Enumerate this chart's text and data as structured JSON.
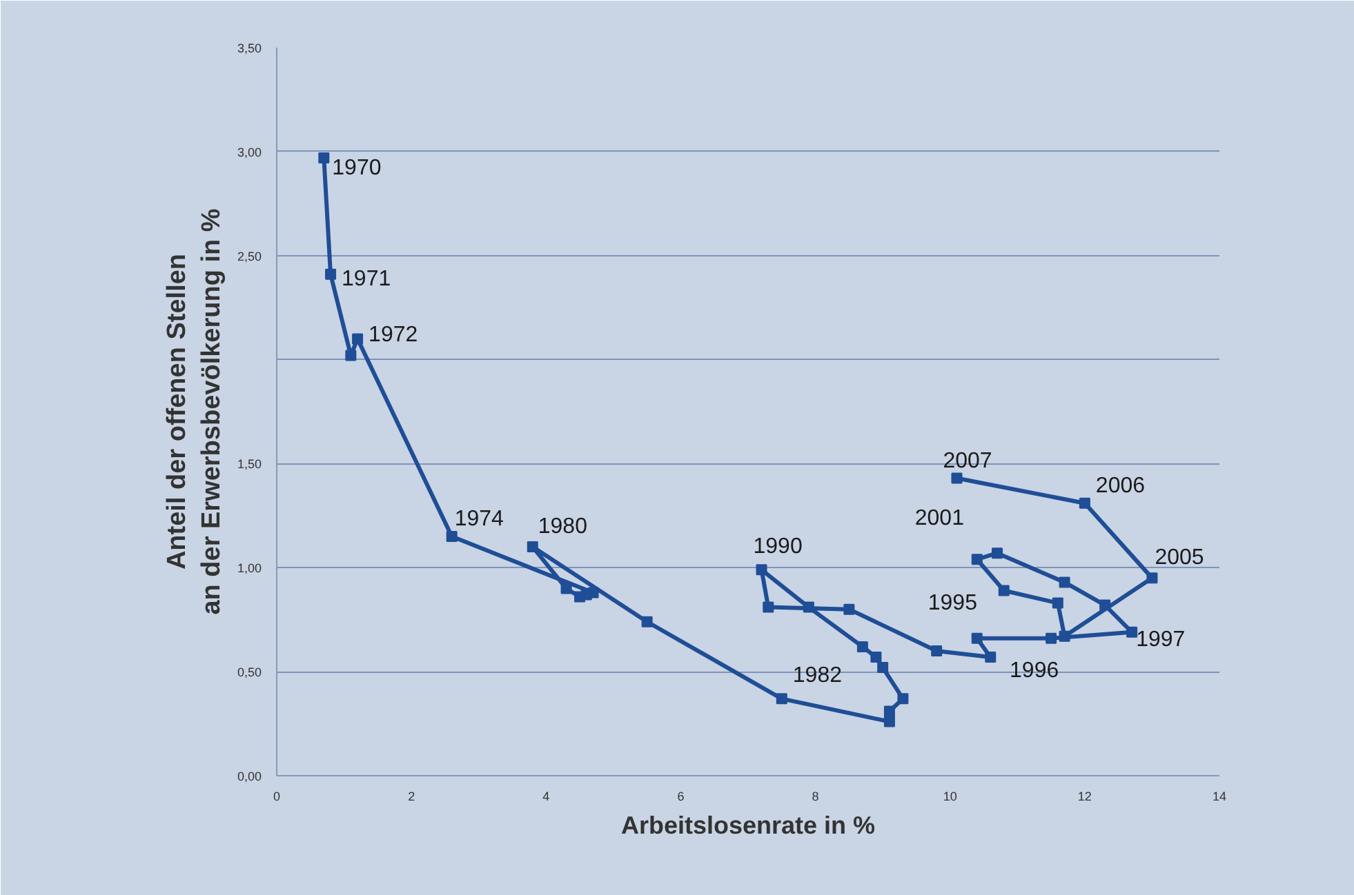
{
  "chart_data": {
    "type": "line",
    "xlabel": "Arbeitslosenrate in %",
    "ylabel": "Anteil der offenen Stellen\nan der Erwerbsbevölkerung in %",
    "xlim": [
      0,
      14
    ],
    "ylim": [
      0,
      3.5
    ],
    "xticks": [
      0,
      2,
      4,
      6,
      8,
      10,
      12,
      14
    ],
    "yticks": [
      {
        "value": 0,
        "label": "0,00"
      },
      {
        "value": 0.5,
        "label": "0,50"
      },
      {
        "value": 1,
        "label": "1,00"
      },
      {
        "value": 1.5,
        "label": "1,50"
      },
      {
        "value": 2,
        "label": null
      },
      {
        "value": 2.5,
        "label": "2,50"
      },
      {
        "value": 3,
        "label": "3,00"
      },
      {
        "value": 3.5,
        "label": "3,50"
      }
    ],
    "grid": "y",
    "marker": "square",
    "line_style": "solid",
    "series": [
      {
        "color": "#1f4e96",
        "x": [
          0.7,
          0.8,
          1.1,
          1.2,
          2.6,
          4.7,
          4.6,
          4.5,
          4.3,
          3.8,
          5.5,
          7.5,
          9.1,
          9.1,
          9.3,
          9.0,
          8.9,
          8.7,
          7.9,
          7.2,
          7.3,
          8.5,
          9.8,
          10.6,
          10.4,
          11.5,
          12.7,
          12.3,
          11.7,
          10.7,
          10.4,
          10.8,
          11.6,
          11.7,
          13.0,
          12.0,
          10.1
        ],
        "values": [
          2.97,
          2.41,
          2.02,
          2.1,
          1.15,
          0.88,
          0.87,
          0.86,
          0.9,
          1.1,
          0.74,
          0.37,
          0.26,
          0.31,
          0.37,
          0.52,
          0.57,
          0.62,
          0.81,
          0.99,
          0.81,
          0.8,
          0.6,
          0.57,
          0.66,
          0.66,
          0.69,
          0.82,
          0.93,
          1.07,
          1.04,
          0.89,
          0.83,
          0.67,
          0.95,
          1.31,
          1.43
        ]
      }
    ],
    "annotations": [
      {
        "text": "1970",
        "x": 0.7,
        "y": 2.97
      },
      {
        "text": "1971",
        "x": 0.8,
        "y": 2.41
      },
      {
        "text": "1972",
        "x": 1.2,
        "y": 2.1
      },
      {
        "text": "1974",
        "x": 2.6,
        "y": 1.15
      },
      {
        "text": "1980",
        "x": 3.8,
        "y": 1.1
      },
      {
        "text": "1982",
        "x": 7.5,
        "y": 0.37
      },
      {
        "text": "1990",
        "x": 7.2,
        "y": 0.99
      },
      {
        "text": "1995",
        "x": 10.8,
        "y": 0.89
      },
      {
        "text": "1996",
        "x": 11.5,
        "y": 0.66
      },
      {
        "text": "1997",
        "x": 12.7,
        "y": 0.69
      },
      {
        "text": "2001",
        "x": 10.4,
        "y": 1.04
      },
      {
        "text": "2005",
        "x": 13.0,
        "y": 0.95
      },
      {
        "text": "2006",
        "x": 12.0,
        "y": 1.31
      },
      {
        "text": "2007",
        "x": 10.1,
        "y": 1.43
      }
    ]
  }
}
